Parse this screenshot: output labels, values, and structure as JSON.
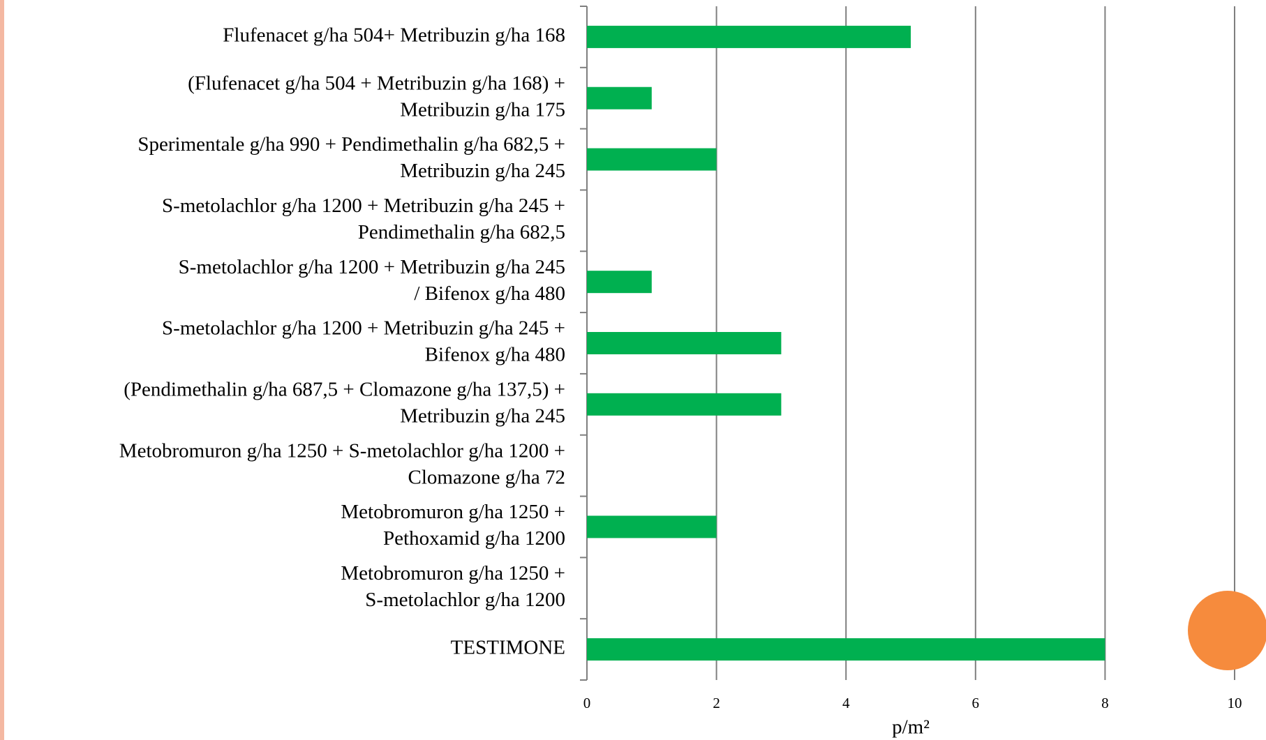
{
  "chart_data": {
    "type": "bar",
    "orientation": "horizontal",
    "categories": [
      [
        "Flufenacet g/ha 504+ Metribuzin g/ha 168"
      ],
      [
        "(Flufenacet g/ha 504 + Metribuzin g/ha 168) +",
        "Metribuzin g/ha 175"
      ],
      [
        "Sperimentale g/ha 990 + Pendimethalin g/ha 682,5 +",
        "Metribuzin g/ha 245"
      ],
      [
        "S-metolachlor g/ha 1200 +   Metribuzin g/ha 245 +",
        "Pendimethalin g/ha 682,5"
      ],
      [
        "S-metolachlor g/ha 1200 + Metribuzin g/ha 245",
        "/ Bifenox g/ha 480"
      ],
      [
        "S-metolachlor g/ha 1200 + Metribuzin  g/ha 245 +",
        "Bifenox g/ha 480"
      ],
      [
        "(Pendimethalin g/ha 687,5 + Clomazone g/ha 137,5) +",
        "Metribuzin g/ha 245"
      ],
      [
        "Metobromuron g/ha 1250 + S-metolachlor g/ha 1200 +",
        "Clomazone g/ha 72"
      ],
      [
        "Metobromuron g/ha 1250 +",
        "Pethoxamid g/ha 1200"
      ],
      [
        "Metobromuron g/ha 1250 +",
        "S-metolachlor g/ha 1200"
      ],
      [
        "TESTIMONE"
      ]
    ],
    "values": [
      5,
      1,
      2,
      0,
      1,
      3,
      3,
      0,
      2,
      0,
      8
    ],
    "color": "#00b050",
    "xlabel": "p/m²",
    "xlim": [
      0,
      10
    ],
    "xticks": [
      0,
      2,
      4,
      6,
      8,
      10
    ],
    "grid": true
  }
}
